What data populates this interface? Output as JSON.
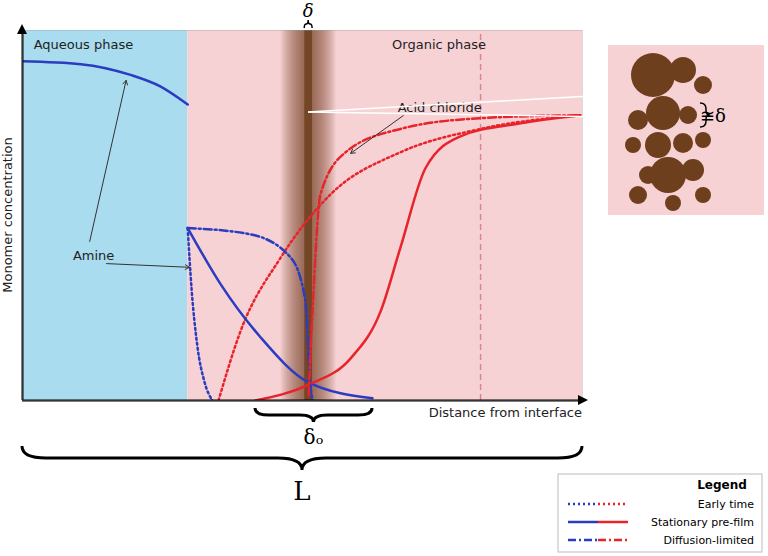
{
  "chart_data": {
    "type": "line",
    "x_label": "Distance from interface",
    "y_label": "Monomer concentration",
    "xlim": [
      0,
      100
    ],
    "ylim": [
      0,
      100
    ],
    "tick_labels": false,
    "grid": false,
    "legend": "bottom-right",
    "legend_title": "Legend",
    "regions": [
      {
        "x": [
          0,
          29.5
        ],
        "color": "#a9dcef"
      },
      {
        "x": [
          29.5,
          100
        ],
        "color": "#f7d2d5"
      }
    ],
    "film": {
      "label": "δ",
      "x": [
        50.4,
        51.8
      ],
      "color": "#6e3f1d"
    },
    "spans": [
      {
        "label": "δₒ",
        "x": [
          41.6,
          62.5
        ]
      },
      {
        "label": "L",
        "x": [
          0,
          100
        ]
      }
    ],
    "reference_lines": [
      {
        "x": 81.8,
        "color": "#d9848f",
        "line_style": "dashed"
      }
    ],
    "series": [
      {
        "name": "Early time",
        "color": "#2b3cc0",
        "line_style": "dotted",
        "x": [
          29.5,
          30.2,
          31.2,
          32.5,
          33.9
        ],
        "values": [
          46.6,
          30,
          15,
          5,
          0
        ]
      },
      {
        "name": "Early time",
        "color": "#e8232a",
        "line_style": "dotted",
        "x": [
          35,
          38.9,
          46.1,
          55,
          67.5,
          81.8,
          99.6
        ],
        "values": [
          0,
          18.6,
          38.6,
          55.7,
          67.1,
          73.4,
          77.1
        ]
      },
      {
        "name": "Stationary pre-film",
        "color": "#2b3cc0",
        "line_style": "solid",
        "x": [
          0,
          10.4,
          19.3,
          24.6,
          29.5,
          29.5,
          29.5,
          35.4,
          42.5,
          51.1,
          62.5
        ],
        "values": [
          91.7,
          90.9,
          88,
          84.9,
          80,
          null,
          46.6,
          31.4,
          17.1,
          4.9,
          0.6
        ]
      },
      {
        "name": "Stationary pre-film",
        "color": "#e8232a",
        "line_style": "solid",
        "x": [
          41.6,
          51.1,
          58.6,
          64,
          67.5,
          72,
          78.2,
          88.9,
          99.6
        ],
        "values": [
          0,
          4.3,
          11.4,
          24.3,
          41.4,
          62.9,
          71.4,
          74.9,
          77.1
        ]
      },
      {
        "name": "Diffusion-limited",
        "color": "#2b3cc0",
        "line_style": "dashdot",
        "x": [
          29.5,
          40.7,
          47.9,
          50.5,
          51.4,
          51.8
        ],
        "values": [
          46.6,
          44.9,
          38.6,
          27.1,
          4.3,
          0
        ]
      },
      {
        "name": "Diffusion-limited",
        "color": "#e8232a",
        "line_style": "dashdot",
        "x": [
          51.1,
          51.8,
          53.2,
          57.7,
          67.5,
          81.8,
          99.6
        ],
        "values": [
          1.4,
          24.3,
          55.7,
          67.1,
          73.4,
          76.3,
          77.1
        ]
      }
    ],
    "annotations": [
      {
        "text": "Aqueous phase",
        "x": 2,
        "y": 96
      },
      {
        "text": "Organic phase",
        "x": 66,
        "y": 96
      },
      {
        "text": "Amine",
        "x": 9,
        "y": 39,
        "arrows": [
          {
            "from": [
              12,
              43
            ],
            "to": [
              18.5,
              86.5
            ]
          },
          {
            "from": [
              15,
              37
            ],
            "to": [
              29.8,
              36
            ]
          }
        ]
      },
      {
        "text": "Acid chloride",
        "x": 67,
        "y": 79,
        "arrows": [
          {
            "from": [
              68,
              77
            ],
            "to": [
              58.6,
              66.8
            ]
          }
        ]
      }
    ],
    "inset": {
      "label": "≅δ"
    }
  }
}
